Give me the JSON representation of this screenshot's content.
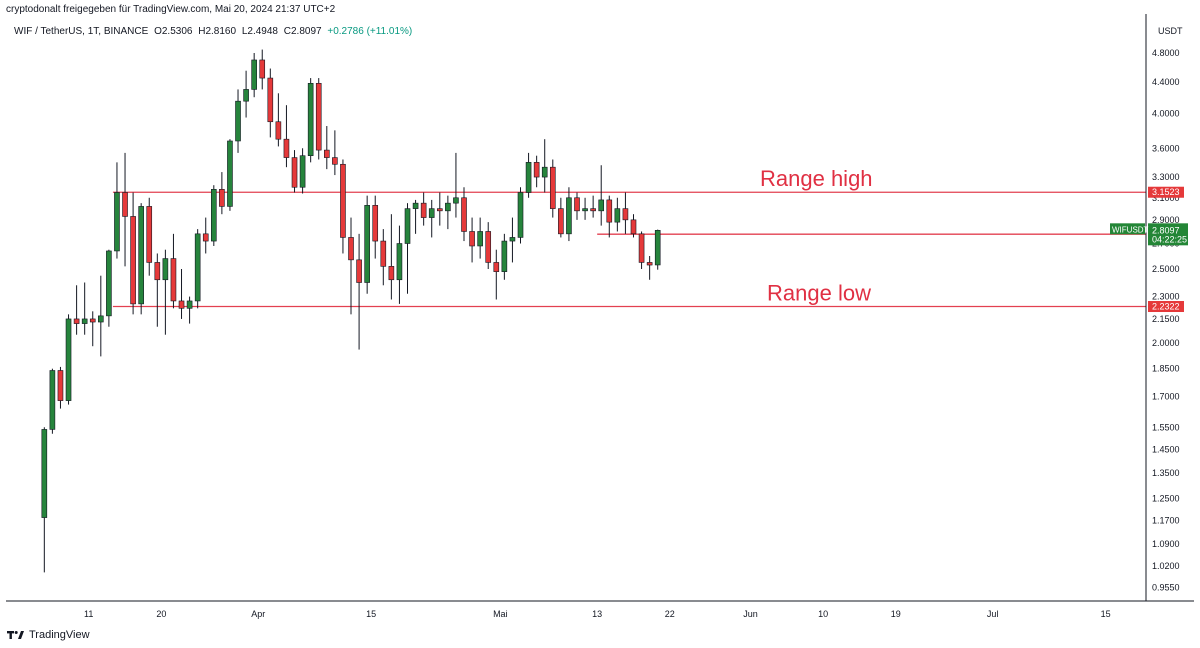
{
  "header": {
    "publisher_line": "cryptodonalt freigegeben für TradingView.com, Mai 20, 2024 21:37 UTC+2"
  },
  "symbol_info": {
    "pair": "WIF / TetherUS, 1T, BINANCE",
    "open": "O2.5306",
    "high": "H2.8160",
    "low": "L2.4948",
    "close": "C2.8097",
    "change": "+0.2786 (+11.01%)"
  },
  "footer": {
    "brand": "TradingView",
    "logo_icon": "tradingview-logo-icon"
  },
  "colors": {
    "up": "#26843c",
    "down": "#e5393a",
    "level": "#e34050",
    "tag_up": "#238636",
    "tag_red": "#e5393a",
    "axis_border": "#131722"
  },
  "chart_data": {
    "type": "candlestick",
    "y_axis": {
      "unit_label": "USDT",
      "scale": "log",
      "ticks": [
        "4.8000",
        "4.4000",
        "4.0000",
        "3.6000",
        "3.3000",
        "3.1000",
        "2.9000",
        "2.7000",
        "2.5000",
        "2.3000",
        "2.1500",
        "2.0000",
        "1.8500",
        "1.7000",
        "1.5500",
        "1.4500",
        "1.3500",
        "1.2500",
        "1.1700",
        "1.0900",
        "1.0200",
        "0.9550"
      ],
      "range": [
        0.92,
        5.4
      ]
    },
    "x_axis": {
      "ticks": [
        "11",
        "20",
        "Apr",
        "15",
        "Mai",
        "13",
        "22",
        "Jun",
        "10",
        "19",
        "Jul",
        "15"
      ],
      "range": [
        "2024-03-01",
        "2024-07-20"
      ]
    },
    "annotations": [
      {
        "label": "Range high",
        "price": 3.1523,
        "tag": "3.1523"
      },
      {
        "label": "Range low",
        "price": 2.2322,
        "tag": "2.2322"
      }
    ],
    "horizontal_levels": [
      {
        "price": 2.7772,
        "tag": "2.7772"
      }
    ],
    "last_price": {
      "symbol": "WIFUSDT",
      "price": 2.8097,
      "tag": "2.8097",
      "countdown": "04:22:25"
    },
    "candles": [
      [
        "2024-03-05",
        1.18,
        1.55,
        1.0,
        1.54
      ],
      [
        "2024-03-06",
        1.54,
        1.85,
        1.52,
        1.84
      ],
      [
        "2024-03-07",
        1.84,
        1.86,
        1.64,
        1.68
      ],
      [
        "2024-03-08",
        1.68,
        2.18,
        1.66,
        2.15
      ],
      [
        "2024-03-09",
        2.15,
        2.38,
        2.05,
        2.12
      ],
      [
        "2024-03-10",
        2.12,
        2.4,
        2.05,
        2.15
      ],
      [
        "2024-03-11",
        2.15,
        2.2,
        1.98,
        2.13
      ],
      [
        "2024-03-12",
        2.13,
        2.45,
        1.92,
        2.17
      ],
      [
        "2024-03-13",
        2.17,
        2.65,
        2.1,
        2.64
      ],
      [
        "2024-03-14",
        2.64,
        3.45,
        2.58,
        3.15
      ],
      [
        "2024-03-15",
        3.15,
        3.55,
        2.52,
        2.93
      ],
      [
        "2024-03-16",
        2.93,
        3.15,
        2.18,
        2.25
      ],
      [
        "2024-03-17",
        2.25,
        3.05,
        2.18,
        3.02
      ],
      [
        "2024-03-18",
        3.02,
        3.1,
        2.45,
        2.55
      ],
      [
        "2024-03-19",
        2.55,
        2.62,
        2.1,
        2.42
      ],
      [
        "2024-03-20",
        2.42,
        2.65,
        2.05,
        2.58
      ],
      [
        "2024-03-21",
        2.58,
        2.78,
        2.22,
        2.27
      ],
      [
        "2024-03-22",
        2.27,
        2.5,
        2.15,
        2.22
      ],
      [
        "2024-03-23",
        2.22,
        2.3,
        2.12,
        2.27
      ],
      [
        "2024-03-24",
        2.27,
        2.82,
        2.22,
        2.78
      ],
      [
        "2024-03-25",
        2.78,
        2.92,
        2.62,
        2.72
      ],
      [
        "2024-03-26",
        2.72,
        3.22,
        2.68,
        3.18
      ],
      [
        "2024-03-27",
        3.18,
        3.35,
        2.95,
        3.02
      ],
      [
        "2024-03-28",
        3.02,
        3.7,
        2.98,
        3.68
      ],
      [
        "2024-03-29",
        3.68,
        4.3,
        3.55,
        4.15
      ],
      [
        "2024-03-30",
        4.15,
        4.55,
        3.95,
        4.3
      ],
      [
        "2024-03-31",
        4.3,
        4.8,
        4.2,
        4.7
      ],
      [
        "2024-04-01",
        4.7,
        4.85,
        4.3,
        4.45
      ],
      [
        "2024-04-02",
        4.45,
        4.58,
        3.72,
        3.9
      ],
      [
        "2024-04-03",
        3.9,
        4.25,
        3.62,
        3.7
      ],
      [
        "2024-04-04",
        3.7,
        4.1,
        3.4,
        3.5
      ],
      [
        "2024-04-05",
        3.5,
        3.58,
        3.15,
        3.2
      ],
      [
        "2024-04-06",
        3.2,
        3.6,
        3.14,
        3.52
      ],
      [
        "2024-04-07",
        3.52,
        4.45,
        3.45,
        4.38
      ],
      [
        "2024-04-08",
        4.38,
        4.45,
        3.48,
        3.58
      ],
      [
        "2024-04-09",
        3.58,
        3.85,
        3.38,
        3.5
      ],
      [
        "2024-04-10",
        3.5,
        3.8,
        3.32,
        3.43
      ],
      [
        "2024-04-11",
        3.43,
        3.48,
        2.62,
        2.75
      ],
      [
        "2024-04-12",
        2.75,
        2.92,
        2.18,
        2.57
      ],
      [
        "2024-04-13",
        2.57,
        2.78,
        1.96,
        2.4
      ],
      [
        "2024-04-14",
        2.4,
        3.12,
        2.32,
        3.03
      ],
      [
        "2024-04-15",
        3.03,
        3.12,
        2.58,
        2.72
      ],
      [
        "2024-04-16",
        2.72,
        2.82,
        2.38,
        2.52
      ],
      [
        "2024-04-17",
        2.52,
        2.95,
        2.28,
        2.42
      ],
      [
        "2024-04-18",
        2.42,
        2.85,
        2.25,
        2.7
      ],
      [
        "2024-04-19",
        2.7,
        3.05,
        2.32,
        3.0
      ],
      [
        "2024-04-20",
        3.0,
        3.08,
        2.78,
        3.05
      ],
      [
        "2024-04-21",
        3.05,
        3.15,
        2.85,
        2.92
      ],
      [
        "2024-04-22",
        2.92,
        3.08,
        2.75,
        3.0
      ],
      [
        "2024-04-23",
        3.0,
        3.15,
        2.85,
        2.98
      ],
      [
        "2024-04-24",
        2.98,
        3.12,
        2.82,
        3.05
      ],
      [
        "2024-04-25",
        3.05,
        3.55,
        2.92,
        3.1
      ],
      [
        "2024-04-26",
        3.1,
        3.2,
        2.72,
        2.8
      ],
      [
        "2024-04-27",
        2.8,
        2.92,
        2.55,
        2.68
      ],
      [
        "2024-04-28",
        2.68,
        2.92,
        2.58,
        2.8
      ],
      [
        "2024-04-29",
        2.8,
        2.88,
        2.5,
        2.55
      ],
      [
        "2024-04-30",
        2.55,
        2.65,
        2.28,
        2.48
      ],
      [
        "2024-05-01",
        2.48,
        2.78,
        2.42,
        2.72
      ],
      [
        "2024-05-02",
        2.72,
        2.92,
        2.55,
        2.75
      ],
      [
        "2024-05-03",
        2.75,
        3.2,
        2.7,
        3.15
      ],
      [
        "2024-05-04",
        3.15,
        3.55,
        3.1,
        3.45
      ],
      [
        "2024-05-05",
        3.45,
        3.52,
        3.2,
        3.3
      ],
      [
        "2024-05-06",
        3.3,
        3.7,
        3.15,
        3.4
      ],
      [
        "2024-05-07",
        3.4,
        3.48,
        2.92,
        3.0
      ],
      [
        "2024-05-08",
        3.0,
        3.1,
        2.75,
        2.78
      ],
      [
        "2024-05-09",
        2.78,
        3.2,
        2.72,
        3.1
      ],
      [
        "2024-05-10",
        3.1,
        3.15,
        2.9,
        2.98
      ],
      [
        "2024-05-11",
        2.98,
        3.1,
        2.9,
        3.0
      ],
      [
        "2024-05-12",
        3.0,
        3.12,
        2.92,
        2.98
      ],
      [
        "2024-05-13",
        2.98,
        3.42,
        2.85,
        3.08
      ],
      [
        "2024-05-14",
        3.08,
        3.12,
        2.75,
        2.88
      ],
      [
        "2024-05-15",
        2.88,
        3.1,
        2.8,
        3.0
      ],
      [
        "2024-05-16",
        3.0,
        3.15,
        2.78,
        2.9
      ],
      [
        "2024-05-17",
        2.9,
        2.95,
        2.75,
        2.78
      ],
      [
        "2024-05-18",
        2.78,
        2.8,
        2.5,
        2.55
      ],
      [
        "2024-05-19",
        2.55,
        2.6,
        2.42,
        2.53
      ],
      [
        "2024-05-20",
        2.5306,
        2.816,
        2.4948,
        2.8097
      ]
    ]
  }
}
